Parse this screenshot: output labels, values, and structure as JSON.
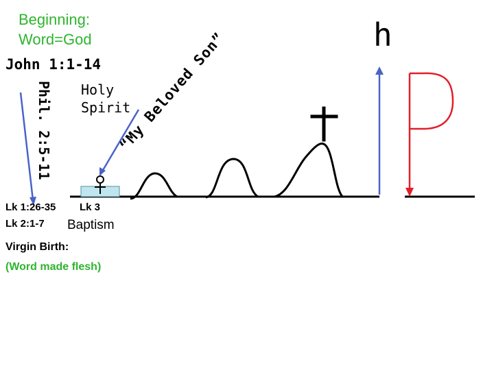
{
  "beginning": {
    "line1": "Beginning:",
    "line2": "Word=God"
  },
  "john_ref": "John 1:1-14",
  "holy_spirit": "Holy Spirit",
  "phil_ref": "Phil. 2:5-11",
  "beloved_son": "“My Beloved Son”",
  "h_letter": "h",
  "lk1_ref": "Lk 1:26-35",
  "lk3_ref": "Lk 3",
  "lk2_ref": "Lk 2:1-7",
  "baptism": "Baptism",
  "virgin_birth": "Virgin Birth:",
  "word_flesh": "(Word made flesh)",
  "colors": {
    "green": "#2db52d",
    "blue": "#4a63c9",
    "red": "#e11f2a",
    "water": "#bfe6ee"
  },
  "icons": {
    "figure": "person-icon",
    "cross": "cross-icon",
    "hill": "hill-icon"
  }
}
